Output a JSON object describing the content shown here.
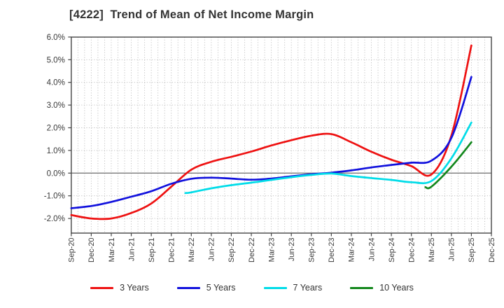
{
  "chart_data": {
    "type": "line",
    "title": "[4222]  Trend of Mean of Net Income Margin",
    "x_labels": [
      "Sep-20",
      "Dec-20",
      "Mar-21",
      "Jun-21",
      "Sep-21",
      "Dec-21",
      "Mar-22",
      "Jun-22",
      "Sep-22",
      "Dec-22",
      "Mar-23",
      "Jun-23",
      "Sep-23",
      "Dec-23",
      "Mar-24",
      "Jun-24",
      "Sep-24",
      "Dec-24",
      "Mar-25",
      "Jun-25",
      "Sep-25",
      "Dec-25"
    ],
    "y_tick_labels": [
      "6.0%",
      "5.0%",
      "4.0%",
      "3.0%",
      "2.0%",
      "1.0%",
      "0.0%",
      "-1.0%",
      "-2.0%"
    ],
    "y_tick_values": [
      6,
      5,
      4,
      3,
      2,
      1,
      0,
      -1,
      -2
    ],
    "ylim": [
      -2.65,
      6.0
    ],
    "unit": "%",
    "grid": {
      "vertical": "monthly-dotted",
      "horizontal": "major-dotted",
      "zero_line": "solid"
    },
    "legend_position": "bottom",
    "colors": {
      "grid": "#bcbcbc",
      "zero_line": "#7a7a7a",
      "spine": "#444444",
      "tick_text": "#383838"
    },
    "series": [
      {
        "name": "3 Years",
        "color": "#ee1111",
        "points": [
          [
            0,
            -1.85
          ],
          [
            1,
            -2.0
          ],
          [
            2,
            -2.0
          ],
          [
            3,
            -1.76
          ],
          [
            4,
            -1.34
          ],
          [
            5,
            -0.6
          ],
          [
            6,
            0.15
          ],
          [
            7,
            0.5
          ],
          [
            8,
            0.72
          ],
          [
            9,
            0.95
          ],
          [
            10,
            1.22
          ],
          [
            11,
            1.45
          ],
          [
            12,
            1.65
          ],
          [
            13,
            1.72
          ],
          [
            14,
            1.36
          ],
          [
            15,
            0.94
          ],
          [
            16,
            0.59
          ],
          [
            17,
            0.31
          ],
          [
            18,
            -0.06
          ],
          [
            19,
            1.65
          ],
          [
            20,
            5.63
          ]
        ]
      },
      {
        "name": "5 Years",
        "color": "#1111dd",
        "points": [
          [
            0,
            -1.55
          ],
          [
            1,
            -1.45
          ],
          [
            2,
            -1.27
          ],
          [
            3,
            -1.04
          ],
          [
            4,
            -0.8
          ],
          [
            5,
            -0.47
          ],
          [
            6,
            -0.25
          ],
          [
            7,
            -0.2
          ],
          [
            8,
            -0.24
          ],
          [
            9,
            -0.29
          ],
          [
            10,
            -0.24
          ],
          [
            11,
            -0.14
          ],
          [
            12,
            -0.05
          ],
          [
            13,
            0.02
          ],
          [
            14,
            0.12
          ],
          [
            15,
            0.25
          ],
          [
            16,
            0.36
          ],
          [
            17,
            0.46
          ],
          [
            18,
            0.55
          ],
          [
            19,
            1.55
          ],
          [
            20,
            4.24
          ]
        ]
      },
      {
        "name": "7 Years",
        "color": "#00dce8",
        "points": [
          [
            5.7,
            -0.88
          ],
          [
            6,
            -0.85
          ],
          [
            7,
            -0.67
          ],
          [
            8,
            -0.53
          ],
          [
            9,
            -0.42
          ],
          [
            10,
            -0.3
          ],
          [
            11,
            -0.18
          ],
          [
            12,
            -0.08
          ],
          [
            13,
            -0.02
          ],
          [
            14,
            -0.13
          ],
          [
            15,
            -0.22
          ],
          [
            16,
            -0.3
          ],
          [
            17,
            -0.4
          ],
          [
            18,
            -0.35
          ],
          [
            19,
            0.65
          ],
          [
            20,
            2.23
          ]
        ]
      },
      {
        "name": "10 Years",
        "color": "#12871c",
        "points": [
          [
            17.7,
            -0.62
          ],
          [
            18,
            -0.6
          ],
          [
            19,
            0.28
          ],
          [
            20,
            1.36
          ]
        ]
      }
    ]
  }
}
